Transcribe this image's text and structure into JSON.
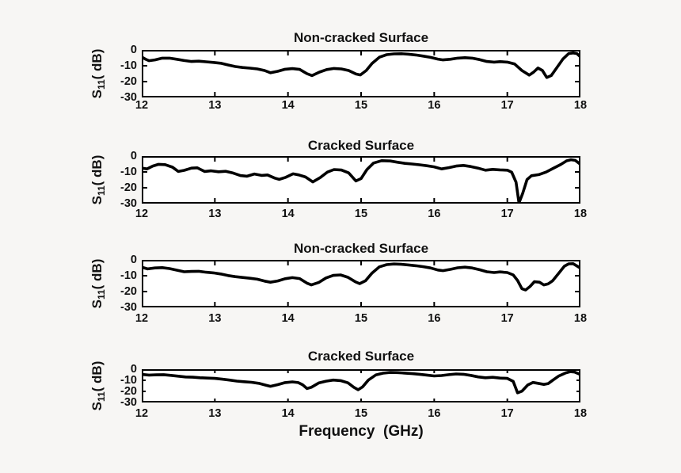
{
  "figure": {
    "background": "#f7f6f4",
    "plot_background": "#ffffff",
    "line_color": "#000000",
    "axis_color": "#000000",
    "text_color": "#111111",
    "line_width": 3.6,
    "ylabel_prefix": "S",
    "ylabel_sub": "11",
    "ylabel_suffix": "( dB)",
    "xlabel": "Frequency  (GHz)"
  },
  "chart_data": [
    {
      "type": "line",
      "title": "Non-cracked Surface",
      "xlabel": "",
      "ylabel": "S11 (dB)",
      "xlim": [
        12,
        18
      ],
      "ylim": [
        -30,
        0
      ],
      "x_ticks": [
        12,
        13,
        14,
        15,
        16,
        17,
        18
      ],
      "y_ticks": [
        0,
        -10,
        -20,
        -30
      ],
      "grid": false,
      "legend": null,
      "points": [
        [
          12,
          -4.5
        ],
        [
          12.05,
          -5.8
        ],
        [
          12.1,
          -6.8
        ],
        [
          12.18,
          -6.3
        ],
        [
          12.28,
          -5.2
        ],
        [
          12.38,
          -5.2
        ],
        [
          12.48,
          -5.9
        ],
        [
          12.58,
          -6.7
        ],
        [
          12.68,
          -7.3
        ],
        [
          12.78,
          -7.1
        ],
        [
          12.88,
          -7.5
        ],
        [
          12.98,
          -7.9
        ],
        [
          13.08,
          -8.4
        ],
        [
          13.18,
          -9.5
        ],
        [
          13.28,
          -10.5
        ],
        [
          13.38,
          -11.1
        ],
        [
          13.48,
          -11.5
        ],
        [
          13.58,
          -12.0
        ],
        [
          13.68,
          -13.0
        ],
        [
          13.76,
          -14.4
        ],
        [
          13.86,
          -13.5
        ],
        [
          13.96,
          -12.2
        ],
        [
          14.06,
          -11.8
        ],
        [
          14.16,
          -12.3
        ],
        [
          14.26,
          -15.0
        ],
        [
          14.33,
          -16.2
        ],
        [
          14.43,
          -14.0
        ],
        [
          14.53,
          -12.4
        ],
        [
          14.63,
          -11.7
        ],
        [
          14.73,
          -12.0
        ],
        [
          14.83,
          -13.0
        ],
        [
          14.93,
          -15.2
        ],
        [
          14.99,
          -15.8
        ],
        [
          15.07,
          -13.0
        ],
        [
          15.15,
          -8.5
        ],
        [
          15.25,
          -4.6
        ],
        [
          15.35,
          -3.0
        ],
        [
          15.45,
          -2.5
        ],
        [
          15.55,
          -2.4
        ],
        [
          15.65,
          -2.7
        ],
        [
          15.75,
          -3.2
        ],
        [
          15.85,
          -3.9
        ],
        [
          15.95,
          -4.7
        ],
        [
          16.05,
          -5.8
        ],
        [
          16.12,
          -6.3
        ],
        [
          16.22,
          -5.9
        ],
        [
          16.32,
          -5.2
        ],
        [
          16.42,
          -4.9
        ],
        [
          16.52,
          -5.2
        ],
        [
          16.62,
          -6.1
        ],
        [
          16.72,
          -7.3
        ],
        [
          16.82,
          -7.7
        ],
        [
          16.9,
          -7.4
        ],
        [
          17.0,
          -7.7
        ],
        [
          17.1,
          -8.9
        ],
        [
          17.2,
          -13.0
        ],
        [
          17.3,
          -15.9
        ],
        [
          17.36,
          -14.0
        ],
        [
          17.42,
          -11.4
        ],
        [
          17.48,
          -13.0
        ],
        [
          17.54,
          -17.4
        ],
        [
          17.6,
          -16.2
        ],
        [
          17.68,
          -11.0
        ],
        [
          17.76,
          -5.8
        ],
        [
          17.84,
          -2.3
        ],
        [
          17.9,
          -1.9
        ],
        [
          17.95,
          -2.3
        ],
        [
          18,
          -4.4
        ]
      ]
    },
    {
      "type": "line",
      "title": "Cracked Surface",
      "xlabel": "",
      "ylabel": "S11 (dB)",
      "xlim": [
        12,
        18
      ],
      "ylim": [
        -30,
        0
      ],
      "x_ticks": [
        12,
        13,
        14,
        15,
        16,
        17,
        18
      ],
      "y_ticks": [
        0,
        -10,
        -20,
        -30
      ],
      "grid": false,
      "legend": null,
      "points": [
        [
          12,
          -7.6
        ],
        [
          12.07,
          -8.1
        ],
        [
          12.15,
          -6.3
        ],
        [
          12.23,
          -5.2
        ],
        [
          12.32,
          -5.4
        ],
        [
          12.42,
          -7.0
        ],
        [
          12.5,
          -9.7
        ],
        [
          12.58,
          -9.0
        ],
        [
          12.68,
          -7.6
        ],
        [
          12.76,
          -7.4
        ],
        [
          12.86,
          -9.7
        ],
        [
          12.95,
          -9.3
        ],
        [
          13.05,
          -9.9
        ],
        [
          13.15,
          -9.6
        ],
        [
          13.25,
          -10.7
        ],
        [
          13.35,
          -12.3
        ],
        [
          13.44,
          -12.7
        ],
        [
          13.54,
          -11.3
        ],
        [
          13.64,
          -12.2
        ],
        [
          13.72,
          -11.9
        ],
        [
          13.82,
          -13.9
        ],
        [
          13.88,
          -14.7
        ],
        [
          13.97,
          -13.4
        ],
        [
          14.07,
          -11.2
        ],
        [
          14.15,
          -11.9
        ],
        [
          14.24,
          -13.2
        ],
        [
          14.34,
          -16.3
        ],
        [
          14.44,
          -13.6
        ],
        [
          14.54,
          -10.1
        ],
        [
          14.63,
          -8.5
        ],
        [
          14.73,
          -8.8
        ],
        [
          14.83,
          -10.6
        ],
        [
          14.93,
          -15.7
        ],
        [
          15.0,
          -14.2
        ],
        [
          15.08,
          -8.5
        ],
        [
          15.17,
          -4.4
        ],
        [
          15.28,
          -2.9
        ],
        [
          15.4,
          -3.1
        ],
        [
          15.5,
          -3.9
        ],
        [
          15.6,
          -4.6
        ],
        [
          15.7,
          -5.0
        ],
        [
          15.8,
          -5.5
        ],
        [
          15.9,
          -6.1
        ],
        [
          16.0,
          -6.8
        ],
        [
          16.1,
          -8.1
        ],
        [
          16.2,
          -7.3
        ],
        [
          16.3,
          -6.3
        ],
        [
          16.4,
          -5.9
        ],
        [
          16.5,
          -6.6
        ],
        [
          16.6,
          -7.6
        ],
        [
          16.7,
          -8.9
        ],
        [
          16.8,
          -8.4
        ],
        [
          16.9,
          -8.7
        ],
        [
          17.0,
          -8.9
        ],
        [
          17.06,
          -10.2
        ],
        [
          17.12,
          -16.5
        ],
        [
          17.16,
          -29.6
        ],
        [
          17.21,
          -23.5
        ],
        [
          17.27,
          -14.8
        ],
        [
          17.33,
          -12.4
        ],
        [
          17.43,
          -11.7
        ],
        [
          17.53,
          -10.1
        ],
        [
          17.63,
          -7.7
        ],
        [
          17.73,
          -5.3
        ],
        [
          17.81,
          -3.0
        ],
        [
          17.87,
          -2.3
        ],
        [
          17.93,
          -2.7
        ],
        [
          18,
          -5.2
        ]
      ]
    },
    {
      "type": "line",
      "title": "Non-cracked Surface",
      "xlabel": "",
      "ylabel": "S11 (dB)",
      "xlim": [
        12,
        18
      ],
      "ylim": [
        -30,
        0
      ],
      "x_ticks": [
        12,
        13,
        14,
        15,
        16,
        17,
        18
      ],
      "y_ticks": [
        0,
        -10,
        -20,
        -30
      ],
      "grid": false,
      "legend": null,
      "points": [
        [
          12,
          -4.6
        ],
        [
          12.08,
          -5.7
        ],
        [
          12.18,
          -5.1
        ],
        [
          12.28,
          -4.9
        ],
        [
          12.38,
          -5.5
        ],
        [
          12.48,
          -6.5
        ],
        [
          12.58,
          -7.5
        ],
        [
          12.68,
          -7.3
        ],
        [
          12.78,
          -7.2
        ],
        [
          12.88,
          -7.8
        ],
        [
          12.98,
          -8.2
        ],
        [
          13.08,
          -8.9
        ],
        [
          13.18,
          -9.9
        ],
        [
          13.28,
          -10.6
        ],
        [
          13.38,
          -11.1
        ],
        [
          13.48,
          -11.6
        ],
        [
          13.58,
          -12.2
        ],
        [
          13.68,
          -13.4
        ],
        [
          13.76,
          -14.1
        ],
        [
          13.86,
          -13.3
        ],
        [
          13.96,
          -11.9
        ],
        [
          14.06,
          -11.2
        ],
        [
          14.16,
          -11.8
        ],
        [
          14.26,
          -14.7
        ],
        [
          14.32,
          -15.8
        ],
        [
          14.42,
          -14.3
        ],
        [
          14.52,
          -11.4
        ],
        [
          14.62,
          -9.8
        ],
        [
          14.72,
          -9.5
        ],
        [
          14.82,
          -11.0
        ],
        [
          14.92,
          -13.8
        ],
        [
          14.98,
          -15.0
        ],
        [
          15.06,
          -13.2
        ],
        [
          15.15,
          -8.3
        ],
        [
          15.25,
          -4.4
        ],
        [
          15.35,
          -3.0
        ],
        [
          15.45,
          -2.6
        ],
        [
          15.55,
          -2.8
        ],
        [
          15.65,
          -3.2
        ],
        [
          15.75,
          -3.7
        ],
        [
          15.85,
          -4.3
        ],
        [
          15.95,
          -5.1
        ],
        [
          16.05,
          -6.4
        ],
        [
          16.12,
          -6.8
        ],
        [
          16.22,
          -6.0
        ],
        [
          16.32,
          -5.0
        ],
        [
          16.42,
          -4.6
        ],
        [
          16.52,
          -5.1
        ],
        [
          16.62,
          -6.2
        ],
        [
          16.72,
          -7.5
        ],
        [
          16.82,
          -8.0
        ],
        [
          16.9,
          -7.6
        ],
        [
          17.0,
          -8.0
        ],
        [
          17.08,
          -9.5
        ],
        [
          17.14,
          -13.0
        ],
        [
          17.2,
          -18.2
        ],
        [
          17.25,
          -19.0
        ],
        [
          17.31,
          -16.8
        ],
        [
          17.37,
          -13.8
        ],
        [
          17.44,
          -14.1
        ],
        [
          17.5,
          -15.8
        ],
        [
          17.56,
          -15.1
        ],
        [
          17.62,
          -13.2
        ],
        [
          17.7,
          -8.6
        ],
        [
          17.78,
          -4.0
        ],
        [
          17.84,
          -2.5
        ],
        [
          17.9,
          -2.4
        ],
        [
          18,
          -5.2
        ]
      ]
    },
    {
      "type": "line",
      "title": "Cracked Surface",
      "xlabel": "Frequency  (GHz)",
      "ylabel": "S11 (dB)",
      "xlim": [
        12,
        18
      ],
      "ylim": [
        -30,
        0
      ],
      "x_ticks": [
        12,
        13,
        14,
        15,
        16,
        17,
        18
      ],
      "y_ticks": [
        0,
        -10,
        -20,
        -30
      ],
      "grid": false,
      "legend": null,
      "points": [
        [
          12,
          -4.7
        ],
        [
          12.1,
          -5.3
        ],
        [
          12.2,
          -5.1
        ],
        [
          12.3,
          -4.9
        ],
        [
          12.4,
          -5.6
        ],
        [
          12.5,
          -6.3
        ],
        [
          12.6,
          -7.0
        ],
        [
          12.7,
          -7.2
        ],
        [
          12.8,
          -7.7
        ],
        [
          12.9,
          -8.0
        ],
        [
          13.0,
          -8.3
        ],
        [
          13.1,
          -9.0
        ],
        [
          13.2,
          -9.8
        ],
        [
          13.3,
          -10.7
        ],
        [
          13.4,
          -11.3
        ],
        [
          13.5,
          -11.8
        ],
        [
          13.6,
          -12.7
        ],
        [
          13.7,
          -14.4
        ],
        [
          13.76,
          -15.4
        ],
        [
          13.86,
          -13.9
        ],
        [
          13.96,
          -12.1
        ],
        [
          14.06,
          -11.4
        ],
        [
          14.14,
          -12.1
        ],
        [
          14.2,
          -14.0
        ],
        [
          14.26,
          -17.4
        ],
        [
          14.32,
          -16.3
        ],
        [
          14.42,
          -12.4
        ],
        [
          14.52,
          -10.8
        ],
        [
          14.62,
          -9.8
        ],
        [
          14.72,
          -10.3
        ],
        [
          14.82,
          -12.3
        ],
        [
          14.9,
          -16.3
        ],
        [
          14.96,
          -18.5
        ],
        [
          15.02,
          -16.0
        ],
        [
          15.1,
          -9.8
        ],
        [
          15.2,
          -5.2
        ],
        [
          15.3,
          -3.6
        ],
        [
          15.4,
          -2.9
        ],
        [
          15.5,
          -3.1
        ],
        [
          15.6,
          -3.5
        ],
        [
          15.7,
          -4.0
        ],
        [
          15.8,
          -4.6
        ],
        [
          15.9,
          -5.3
        ],
        [
          16.0,
          -6.1
        ],
        [
          16.1,
          -5.7
        ],
        [
          16.2,
          -4.9
        ],
        [
          16.3,
          -4.3
        ],
        [
          16.4,
          -4.6
        ],
        [
          16.5,
          -5.6
        ],
        [
          16.6,
          -6.9
        ],
        [
          16.7,
          -7.7
        ],
        [
          16.8,
          -7.3
        ],
        [
          16.9,
          -8.0
        ],
        [
          17.0,
          -8.3
        ],
        [
          17.08,
          -11.0
        ],
        [
          17.14,
          -21.3
        ],
        [
          17.2,
          -19.8
        ],
        [
          17.28,
          -14.2
        ],
        [
          17.35,
          -11.9
        ],
        [
          17.42,
          -12.7
        ],
        [
          17.5,
          -13.7
        ],
        [
          17.56,
          -12.9
        ],
        [
          17.62,
          -10.0
        ],
        [
          17.7,
          -6.3
        ],
        [
          17.8,
          -3.3
        ],
        [
          17.86,
          -2.2
        ],
        [
          17.92,
          -2.6
        ],
        [
          18,
          -4.8
        ]
      ]
    }
  ]
}
